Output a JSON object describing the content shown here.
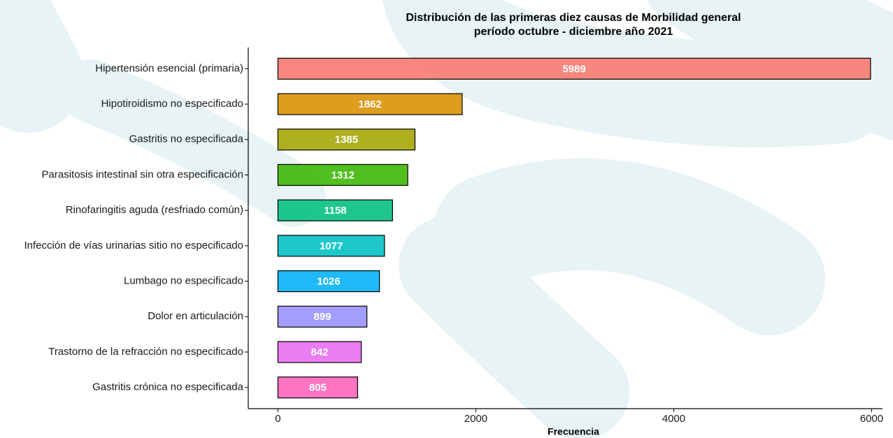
{
  "chart_data": {
    "type": "barh",
    "title": "Distribución de las primeras diez causas de Morbilidad general",
    "subtitle": "período octubre - diciembre año 2021",
    "x_label": "Frecuencia",
    "categories": [
      "Hipertensión esencial (primaria)",
      "Hipotiroidismo no especificado",
      "Gastritis no especificada",
      "Parasitosis intestinal sin otra especificación",
      "Rinofaringitis aguda (resfriado común)",
      "Infección de vías urinarias sitio no especificado",
      "Lumbago no especificado",
      "Dolor en articulación",
      "Trastorno de la refracción no especificado",
      "Gastritis crónica no especificada"
    ],
    "values": [
      5989,
      1862,
      1385,
      1312,
      1158,
      1077,
      1026,
      899,
      842,
      805
    ],
    "colors": [
      "#F8766D",
      "#D89000",
      "#A3A500",
      "#39B600",
      "#00BF7D",
      "#00BFC4",
      "#00B0F6",
      "#9590FF",
      "#E76BF3",
      "#FF62BC"
    ],
    "xlim": [
      -300,
      6110
    ],
    "xticks": [
      0,
      2000,
      4000,
      6000
    ],
    "grid": false
  }
}
